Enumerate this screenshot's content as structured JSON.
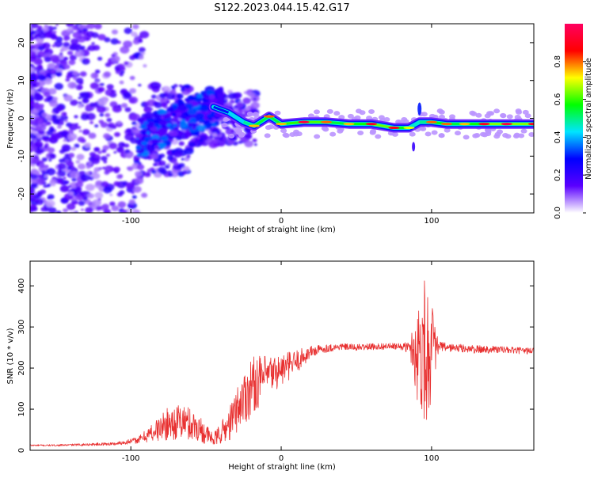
{
  "title": "S122.2023.044.15.42.G17",
  "chart_data": [
    {
      "type": "heatmap",
      "xlabel": "Height of straight line (km)",
      "ylabel": "Frequency (Hz)",
      "xlim": [
        -167,
        168
      ],
      "ylim": [
        -25,
        25
      ],
      "x_ticks": [
        -100,
        0,
        100
      ],
      "y_ticks": [
        -20,
        -10,
        0,
        10,
        20
      ],
      "colorbar": {
        "label": "Normalized spectral amplitude",
        "range": [
          0,
          1
        ],
        "ticks": [
          0.0,
          0.2,
          0.4,
          0.6,
          0.8
        ],
        "colors": [
          "#ffffff",
          "#5a00ff",
          "#0000ff",
          "#00e5ff",
          "#00ff00",
          "#ffff00",
          "#ff0000",
          "#ff0060"
        ]
      },
      "ridge": [
        {
          "x": -45,
          "f": 3,
          "a": 0.3
        },
        {
          "x": -35,
          "f": 1.5,
          "a": 0.55
        },
        {
          "x": -25,
          "f": -1,
          "a": 0.65
        },
        {
          "x": -18,
          "f": -2,
          "a": 0.75
        },
        {
          "x": -8,
          "f": 0.5,
          "a": 0.8
        },
        {
          "x": 0,
          "f": -1.5,
          "a": 0.75
        },
        {
          "x": 15,
          "f": -1,
          "a": 0.95
        },
        {
          "x": 30,
          "f": -1,
          "a": 0.8
        },
        {
          "x": 45,
          "f": -1.5,
          "a": 0.75
        },
        {
          "x": 60,
          "f": -1.5,
          "a": 0.9
        },
        {
          "x": 75,
          "f": -2.5,
          "a": 0.9
        },
        {
          "x": 85,
          "f": -2.5,
          "a": 0.7
        },
        {
          "x": 92,
          "f": -1,
          "a": 0.6
        },
        {
          "x": 100,
          "f": -1,
          "a": 0.8
        },
        {
          "x": 110,
          "f": -1.5,
          "a": 0.8
        },
        {
          "x": 122,
          "f": -1.5,
          "a": 0.75
        },
        {
          "x": 135,
          "f": -1.5,
          "a": 0.9
        },
        {
          "x": 150,
          "f": -1.5,
          "a": 0.95
        },
        {
          "x": 168,
          "f": -1.5,
          "a": 0.9
        }
      ]
    },
    {
      "type": "line",
      "xlabel": "Height of straight line (km)",
      "ylabel": "SNR (10 * v/v)",
      "xlim": [
        -167,
        168
      ],
      "ylim": [
        0,
        460
      ],
      "x_ticks": [
        -100,
        0,
        100
      ],
      "y_ticks": [
        0,
        100,
        200,
        300,
        400
      ],
      "color": "#e83030",
      "series": [
        {
          "x": [
            -167,
            -150,
            -130,
            -110,
            -95,
            -85,
            -75,
            -65,
            -55,
            -45,
            -35,
            -28,
            -20,
            -10,
            0,
            10,
            20,
            30,
            40,
            50,
            60,
            70,
            80,
            85,
            88,
            91,
            94,
            97,
            100,
            103,
            106,
            110,
            120,
            130,
            140,
            150,
            160,
            168
          ],
          "y": [
            12,
            12,
            14,
            16,
            25,
            45,
            65,
            70,
            55,
            25,
            60,
            110,
            155,
            180,
            195,
            215,
            240,
            248,
            252,
            250,
            252,
            253,
            252,
            250,
            245,
            230,
            260,
            240,
            250,
            245,
            252,
            250,
            248,
            245,
            246,
            244,
            242,
            242
          ],
          "noise": [
            2,
            2,
            3,
            4,
            8,
            25,
            40,
            45,
            35,
            15,
            40,
            60,
            75,
            50,
            40,
            30,
            15,
            10,
            8,
            8,
            8,
            8,
            8,
            15,
            60,
            130,
            170,
            190,
            120,
            40,
            15,
            10,
            10,
            10,
            10,
            8,
            8,
            8
          ]
        }
      ]
    }
  ]
}
